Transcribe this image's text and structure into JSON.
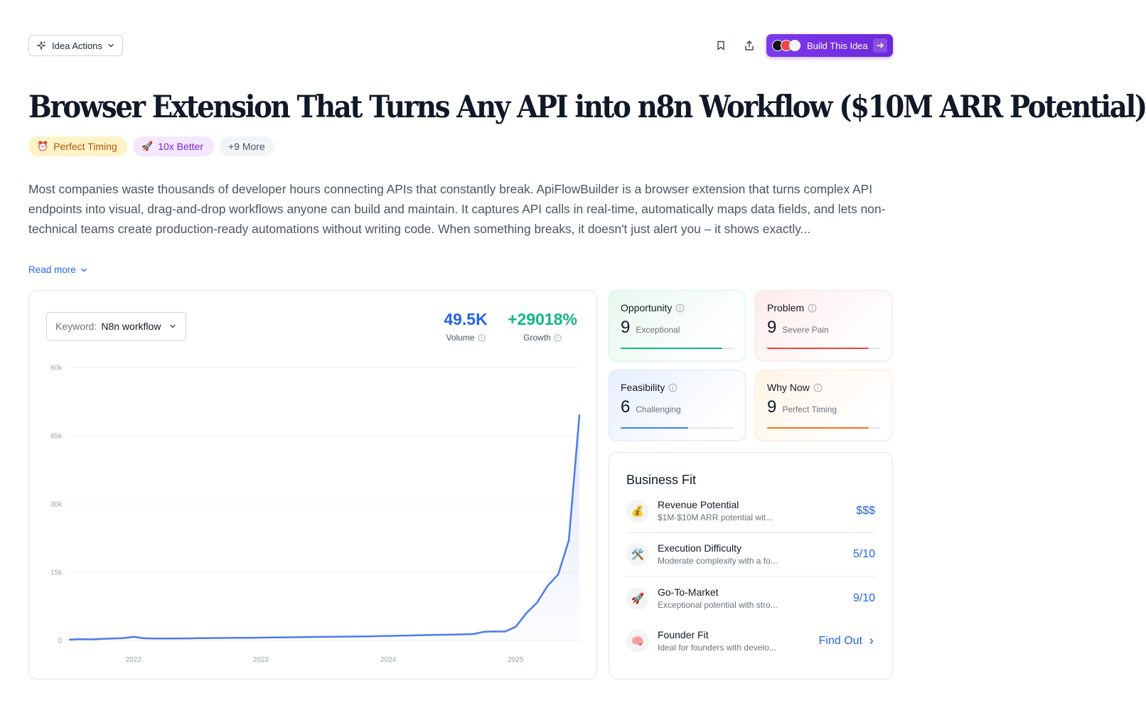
{
  "header": {
    "idea_actions_label": "Idea Actions",
    "build_label": "Build This Idea",
    "logo_colors": [
      "#111111",
      "#ef4444",
      "#ffffff"
    ]
  },
  "title": "Browser Extension That Turns Any API into n8n Workflow ($10M ARR Potential)",
  "tags": [
    {
      "emoji": "⏰",
      "label": "Perfect Timing"
    },
    {
      "emoji": "🚀",
      "label": "10x Better"
    },
    {
      "label": "+9 More"
    }
  ],
  "description": "Most companies waste thousands of developer hours connecting APIs that constantly break. ApiFlowBuilder is a browser extension that turns complex API endpoints into visual, drag-and-drop workflows anyone can build and maintain. It captures API calls in real-time, automatically maps data fields, and lets non-technical teams create production-ready automations without writing code. When something breaks, it doesn't just alert you – it shows exactly...",
  "read_more": "Read more",
  "trend": {
    "keyword_label": "Keyword:",
    "keyword_value": "N8n workflow",
    "volume_value": "49.5K",
    "volume_label": "Volume",
    "growth_value": "+29018%",
    "growth_label": "Growth"
  },
  "chart_data": {
    "type": "area",
    "x": [
      "2021-07",
      "2021-08",
      "2021-09",
      "2021-10",
      "2021-11",
      "2021-12",
      "2022-01",
      "2022-02",
      "2022-03",
      "2022-04",
      "2022-05",
      "2022-06",
      "2022-07",
      "2022-08",
      "2022-09",
      "2022-10",
      "2022-11",
      "2022-12",
      "2023-01",
      "2023-02",
      "2023-03",
      "2023-04",
      "2023-05",
      "2023-06",
      "2023-07",
      "2023-08",
      "2023-09",
      "2023-10",
      "2023-11",
      "2023-12",
      "2024-01",
      "2024-02",
      "2024-03",
      "2024-04",
      "2024-05",
      "2024-06",
      "2024-07",
      "2024-08",
      "2024-09",
      "2024-10",
      "2024-11",
      "2024-12",
      "2025-01",
      "2025-02",
      "2025-03",
      "2025-04",
      "2025-05",
      "2025-06",
      "2025-07"
    ],
    "values": [
      170,
      300,
      230,
      350,
      420,
      500,
      800,
      480,
      420,
      440,
      450,
      460,
      500,
      520,
      540,
      560,
      600,
      580,
      620,
      650,
      680,
      700,
      750,
      780,
      800,
      820,
      850,
      870,
      900,
      950,
      1000,
      1050,
      1100,
      1150,
      1200,
      1250,
      1300,
      1350,
      1400,
      1900,
      2000,
      1950,
      3000,
      6000,
      8300,
      12000,
      14500,
      22000,
      49500
    ],
    "ylim": [
      0,
      60000
    ],
    "yticks": [
      0,
      15000,
      30000,
      45000,
      60000
    ],
    "ytick_labels": [
      "0",
      "15k",
      "30k",
      "45k",
      "60k"
    ],
    "xtick_labels": [
      "2022",
      "2023",
      "2024",
      "2025"
    ],
    "xtick_positions": [
      "2022-01",
      "2023-01",
      "2024-01",
      "2025-01"
    ],
    "line_color": "#4f7be8",
    "grid": true,
    "legend": "none"
  },
  "scores": [
    {
      "title": "Opportunity",
      "score": "9",
      "label": "Exceptional",
      "value": 0.9,
      "color": "#10b981"
    },
    {
      "title": "Problem",
      "score": "9",
      "label": "Severe Pain",
      "value": 0.9,
      "color": "#ef4444"
    },
    {
      "title": "Feasibility",
      "score": "6",
      "label": "Challenging",
      "value": 0.6,
      "color": "#3b82f6"
    },
    {
      "title": "Why Now",
      "score": "9",
      "label": "Perfect Timing",
      "value": 0.9,
      "color": "#f97316"
    }
  ],
  "business_fit": {
    "title": "Business Fit",
    "rows": [
      {
        "emoji": "💰",
        "name": "Revenue Potential",
        "desc": "$1M-$10M ARR potential wit...",
        "value": "$$$"
      },
      {
        "emoji": "🛠️",
        "name": "Execution Difficulty",
        "desc": "Moderate complexity with a fo...",
        "value": "5/10"
      },
      {
        "emoji": "🚀",
        "name": "Go-To-Market",
        "desc": "Exceptional potential with stro...",
        "value": "9/10"
      },
      {
        "emoji": "🧠",
        "name": "Founder Fit",
        "desc": "Ideal for founders with develo...",
        "value": "Find Out"
      }
    ]
  }
}
